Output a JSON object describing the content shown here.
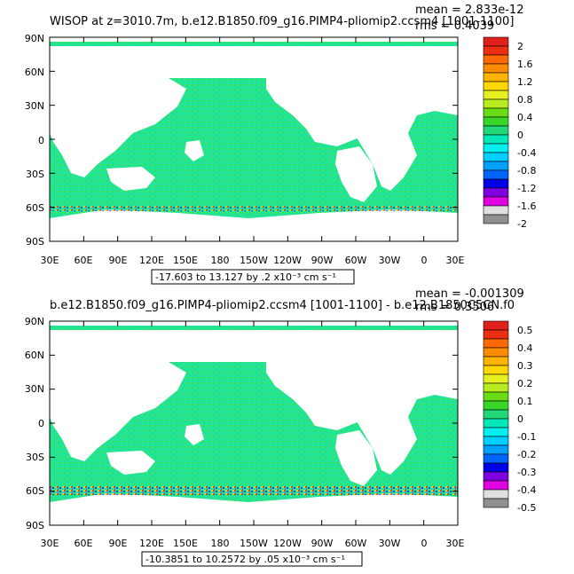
{
  "panels": [
    {
      "title": "WISOP at z=3010.7m, b.e12.B1850.f09_g16.PIMP4-pliomip2.ccsm4 [1001-1100]",
      "mean": "mean = 2.833e-12",
      "rms": "rms = 0.4039",
      "range_label": "-17.603 to 13.127 by .2 x10⁻³ cm s⁻¹",
      "colorbar_labels": [
        "2",
        "1.6",
        "1.2",
        "0.8",
        "0.4",
        "0",
        "-0.4",
        "-0.8",
        "-1.2",
        "-1.6",
        "-2"
      ],
      "colorbar_colors": [
        "#e0201a",
        "#ee2e10",
        "#ff6a00",
        "#ff8c00",
        "#ffb400",
        "#ffd800",
        "#e6f020",
        "#b8ec20",
        "#6adc14",
        "#38d628",
        "#20d878",
        "#00e8b8",
        "#00f0f0",
        "#00d0ff",
        "#00a0ff",
        "#0064ff",
        "#0000e8",
        "#8000e0",
        "#e000e0",
        "#e0e0e0",
        "#909090"
      ]
    },
    {
      "title": "b.e12.B1850.f09_g16.PIMP4-pliomip2.ccsm4 [1001-1100] - b.e12.B1850C5CN.f0",
      "mean": "mean = -0.001309",
      "rms": "rms = 0.3506",
      "range_label": "-10.3851 to 10.2572 by .05 x10⁻³ cm s⁻¹",
      "colorbar_labels": [
        "0.5",
        "0.4",
        "0.3",
        "0.2",
        "0.1",
        "0",
        "-0.1",
        "-0.2",
        "-0.3",
        "-0.4",
        "-0.5"
      ],
      "colorbar_colors": [
        "#e0201a",
        "#ee2e10",
        "#ff6a00",
        "#ff8c00",
        "#ffb400",
        "#ffd800",
        "#e6f020",
        "#b8ec20",
        "#6adc14",
        "#38d628",
        "#20d878",
        "#00e8b8",
        "#00f0f0",
        "#00d0ff",
        "#00a0ff",
        "#0064ff",
        "#0000e8",
        "#8000e0",
        "#e000e0",
        "#e0e0e0",
        "#909090"
      ]
    }
  ],
  "axes": {
    "lat_labels": [
      "90N",
      "60N",
      "30N",
      "0",
      "30S",
      "60S",
      "90S"
    ],
    "lon_labels": [
      "30E",
      "60E",
      "90E",
      "120E",
      "150E",
      "180",
      "150W",
      "120W",
      "90W",
      "60W",
      "30W",
      "0",
      "30E"
    ]
  },
  "colors": {
    "ocean_fill": "#1ee6a0",
    "ocean_speckle": "#3cd84a",
    "land": "#ffffff"
  }
}
